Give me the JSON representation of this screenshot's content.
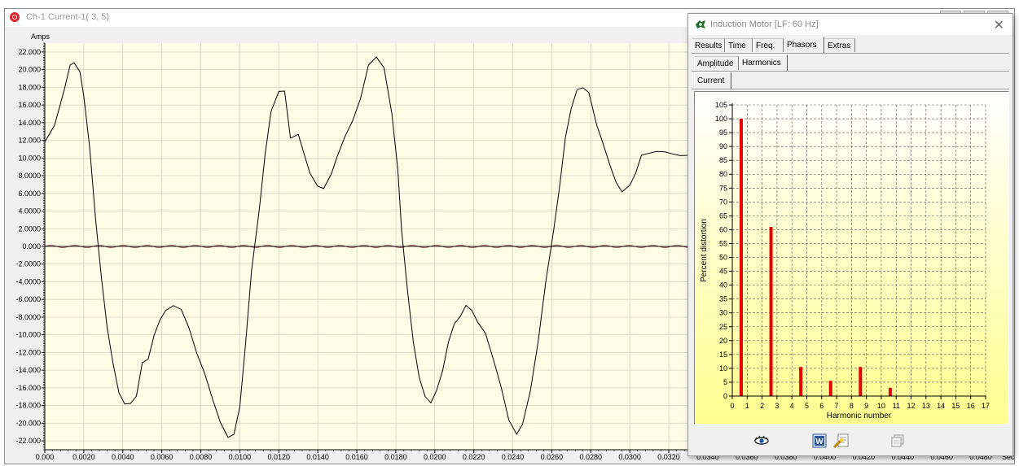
{
  "window": {
    "title": "Ch-1 Current-1( 3, 5)"
  },
  "waveform": {
    "ylabel": "Amps",
    "xunit": "Sec",
    "yticks": [
      "22.000",
      "20.000",
      "18.000",
      "16.000",
      "14.000",
      "12.000",
      "10.000",
      "8.0000",
      "6.0000",
      "4.0000",
      "2.0000",
      "0.000",
      "-2.0000",
      "-4.0000",
      "-6.0000",
      "-8.0000",
      "-10.000",
      "-12.000",
      "-14.000",
      "-16.000",
      "-18.000",
      "-20.000",
      "-22.000"
    ],
    "xticks": [
      "0.000",
      "0.0020",
      "0.0040",
      "0.0060",
      "0.0080",
      "0.0100",
      "0.0120",
      "0.0140",
      "0.0160",
      "0.0180",
      "0.0200",
      "0.0220",
      "0.0240",
      "0.0260",
      "0.0280",
      "0.0300",
      "0.0320",
      "0.0340",
      "0.0360",
      "0.0380",
      "0.0400",
      "0.0420",
      "0.0440",
      "0.0460",
      "0.0480"
    ],
    "colors": {
      "background": "#fffde6",
      "grid": "#ddddc8",
      "trace": "#000000"
    }
  },
  "dialog": {
    "title": "Induction Motor  [LF: 60 Hz]",
    "tabs_row1": [
      {
        "label": "Results",
        "active": false
      },
      {
        "label": "Time",
        "active": false
      },
      {
        "label": "Freq.",
        "active": false
      },
      {
        "label": "Phasors",
        "active": true
      },
      {
        "label": "Extras",
        "active": false
      }
    ],
    "tabs_row2": [
      {
        "label": "Amplitude",
        "active": false
      },
      {
        "label": "Harmonics",
        "active": true
      }
    ],
    "tabs_row3": [
      {
        "label": "Current",
        "active": true
      }
    ],
    "icons": [
      "eye-icon",
      "word-export-icon",
      "settings-wand-icon",
      "copy-icon"
    ]
  },
  "chart_data": [
    {
      "type": "line",
      "title": "",
      "xlabel": "Sec",
      "ylabel": "Amps",
      "xlim": [
        0,
        0.049
      ],
      "ylim": [
        -23,
        23
      ],
      "grid": true,
      "series": [
        {
          "x": [
            0.0,
            0.0005,
            0.001,
            0.0013,
            0.0015,
            0.0018,
            0.002,
            0.0023,
            0.0026,
            0.0029,
            0.0032,
            0.0035,
            0.0038,
            0.0041,
            0.0044,
            0.0047,
            0.005,
            0.0053,
            0.0056,
            0.0059,
            0.0062,
            0.0066,
            0.007,
            0.0074,
            0.0078,
            0.0082,
            0.0086,
            0.009,
            0.0094,
            0.0097,
            0.01,
            0.0103,
            0.0106,
            0.011,
            0.0113,
            0.0116,
            0.012,
            0.0123,
            0.0126,
            0.013,
            0.0133,
            0.0136,
            0.014,
            0.0143,
            0.0147,
            0.015,
            0.0154,
            0.0158,
            0.0162,
            0.0166,
            0.017,
            0.0174,
            0.0178,
            0.0181,
            0.0183,
            0.0186,
            0.0189,
            0.0192,
            0.0195,
            0.0198,
            0.0201,
            0.0204,
            0.0207,
            0.021,
            0.0213,
            0.0216,
            0.0219,
            0.0222,
            0.0226,
            0.023,
            0.0234,
            0.0238,
            0.0242,
            0.0245,
            0.0249,
            0.0253,
            0.0257,
            0.0261,
            0.0264,
            0.0267,
            0.027,
            0.0273,
            0.0276,
            0.0279,
            0.0283,
            0.0286,
            0.029,
            0.0293,
            0.0296,
            0.03,
            0.0303,
            0.0306,
            0.031,
            0.0314,
            0.0318,
            0.0322,
            0.0326,
            0.033,
            0.0333
          ],
          "values": [
            11.8,
            13.5,
            17.5,
            20.5,
            21.0,
            20.0,
            17.0,
            11.0,
            3.0,
            -3.5,
            -9.0,
            -13.0,
            -16.5,
            -18.0,
            -18.0,
            -17.0,
            -13.0,
            -12.5,
            -10.0,
            -8.5,
            -7.5,
            -6.8,
            -7.0,
            -9.0,
            -12.0,
            -14.5,
            -17.5,
            -20.0,
            -21.5,
            -21.0,
            -18.0,
            -11.0,
            -3.0,
            4.0,
            10.5,
            15.5,
            17.7,
            17.5,
            12.0,
            12.5,
            10.5,
            8.5,
            7.0,
            6.5,
            8.0,
            10.0,
            12.5,
            14.5,
            17.0,
            20.5,
            21.2,
            20.0,
            15.0,
            9.0,
            2.0,
            -5.0,
            -11.0,
            -15.0,
            -17.0,
            -17.5,
            -16.0,
            -14.0,
            -11.0,
            -9.0,
            -8.0,
            -6.5,
            -7.0,
            -8.5,
            -10.0,
            -13.0,
            -16.0,
            -19.5,
            -21.0,
            -20.0,
            -16.5,
            -11.0,
            -4.0,
            2.0,
            7.0,
            12.5,
            15.5,
            17.5,
            17.8,
            17.5,
            14.0,
            12.0,
            9.0,
            7.0,
            6.0,
            7.0,
            8.5,
            10.5,
            10.5,
            10.5,
            10.5,
            10.5,
            10.5,
            10.5,
            10.5
          ]
        }
      ]
    },
    {
      "type": "bar",
      "title": "",
      "xlabel": "Harmonic number",
      "ylabel": "Percent distortion",
      "categories": [
        1,
        3,
        5,
        7,
        9,
        11
      ],
      "values": [
        100,
        61,
        10.5,
        5.5,
        10.5,
        3
      ],
      "xlim": [
        0,
        17
      ],
      "ylim": [
        0,
        105
      ],
      "xticks": [
        "0",
        "1",
        "2",
        "3",
        "4",
        "5",
        "6",
        "7",
        "8",
        "9",
        "10",
        "11",
        "12",
        "13",
        "14",
        "15",
        "16",
        "17"
      ],
      "yticks": [
        "0",
        "5",
        "10",
        "15",
        "20",
        "25",
        "30",
        "35",
        "40",
        "45",
        "50",
        "55",
        "60",
        "65",
        "70",
        "75",
        "80",
        "85",
        "90",
        "95",
        "100",
        "105"
      ],
      "grid": true,
      "colors": {
        "bar": "#e50000",
        "bg_top": "#ffffff",
        "bg_bottom": "#ffff90"
      }
    }
  ]
}
